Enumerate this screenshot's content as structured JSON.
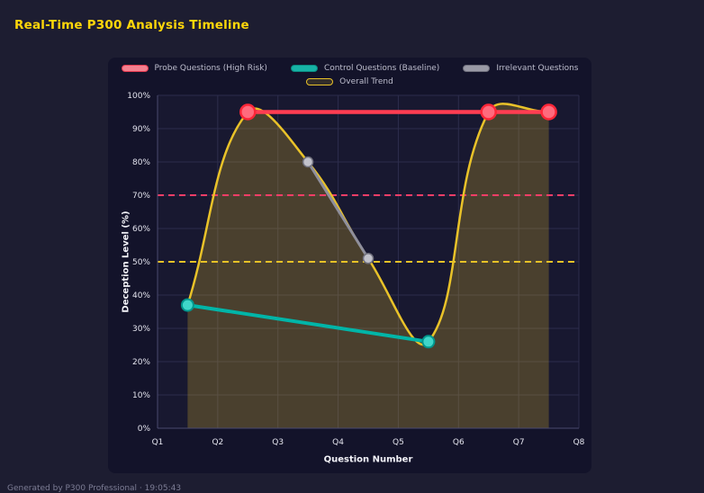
{
  "page": {
    "title": "Real-Time P300 Analysis Timeline",
    "title_color": "#ffd60a",
    "background_color": "#1d1d31",
    "panel_color": "#13132a",
    "footer": "Generated by P300 Professional · 19:05:43"
  },
  "chart_data": {
    "type": "line",
    "title": "Real-Time P300 Analysis Timeline",
    "xlabel": "Question Number",
    "ylabel": "Deception Level (%)",
    "xlim": [
      1,
      8
    ],
    "ylim": [
      0,
      100
    ],
    "x_tick_values": [
      1,
      2,
      3,
      4,
      5,
      6,
      7,
      8
    ],
    "x_tick_labels": [
      "Q1",
      "Q2",
      "Q3",
      "Q4",
      "Q5",
      "Q6",
      "Q7",
      "Q8"
    ],
    "y_tick_values": [
      0,
      10,
      20,
      30,
      40,
      50,
      60,
      70,
      80,
      90,
      100
    ],
    "y_tick_labels": [
      "0%",
      "10%",
      "20%",
      "30%",
      "40%",
      "50%",
      "60%",
      "70%",
      "80%",
      "90%",
      "100%"
    ],
    "grid": true,
    "grid_color": "#2d2d4c",
    "axis_color": "#4a4a6e",
    "tick_color": "#e4e4ee",
    "plot_bg": "#181830",
    "legend_position": "top",
    "legend_rows": [
      [
        "probe",
        "control",
        "irrelevant"
      ],
      [
        "trend"
      ]
    ],
    "series": [
      {
        "id": "probe",
        "name": "Probe Questions (High Risk)",
        "x": [
          2.5,
          6.5,
          7.5
        ],
        "values": [
          95,
          95,
          95
        ],
        "line_color": "#ff3d52",
        "line_width": 4.5,
        "smooth": false,
        "point_radius": 8,
        "point_fill": "#ff6b7d",
        "point_stroke": "#ff2638",
        "point_stroke_width": 2.5,
        "legend_fill": "#f4808f",
        "legend_border": "#e23a50"
      },
      {
        "id": "control",
        "name": "Control Questions (Baseline)",
        "x": [
          1.5,
          5.5
        ],
        "values": [
          37,
          26
        ],
        "line_color": "#00b5a8",
        "line_width": 4,
        "smooth": false,
        "point_radius": 6.5,
        "point_fill": "#3fd6c9",
        "point_stroke": "#00968c",
        "point_stroke_width": 2,
        "legend_fill": "#17b3a6",
        "legend_border": "#0b8a80"
      },
      {
        "id": "irrelevant",
        "name": "Irrelevant Questions",
        "x": [
          3.5,
          4.5
        ],
        "values": [
          80,
          51
        ],
        "line_color": "#8f8f9c",
        "line_width": 3,
        "smooth": false,
        "point_radius": 5.5,
        "point_fill": "#c2c2cb",
        "point_stroke": "#6f6f7c",
        "point_stroke_width": 1.5,
        "legend_fill": "#9a9aa6",
        "legend_border": "#6f6f7c"
      },
      {
        "id": "trend",
        "name": "Overall Trend",
        "x": [
          1.5,
          2.5,
          3.5,
          4.5,
          5.5,
          6.5,
          7.5
        ],
        "values": [
          37,
          95,
          80,
          51,
          26,
          95,
          95
        ],
        "line_color": "#e9c229",
        "line_width": 2.5,
        "smooth": true,
        "fill": true,
        "fill_color": "rgba(233,194,41,0.24)",
        "point_radius": 0,
        "legend_fill": "rgba(233,194,41,0.15)",
        "legend_border": "#e9c229"
      }
    ],
    "thresholds": [
      {
        "value": 70,
        "color": "#ff3d67",
        "dash": "7 5",
        "width": 2
      },
      {
        "value": 50,
        "color": "#e8c227",
        "dash": "7 5",
        "width": 2
      }
    ]
  }
}
